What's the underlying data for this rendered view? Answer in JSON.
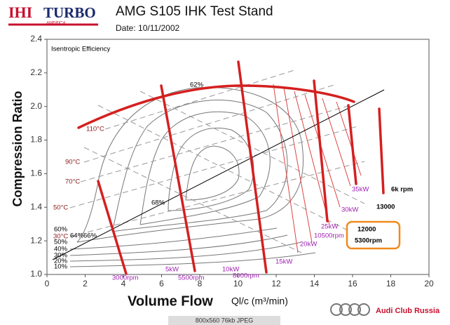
{
  "logo": {
    "brand": "IHI",
    "name": "TURBO",
    "region": "AMERICA"
  },
  "footer": {
    "image_info": "800x560  76kb  JPEG",
    "club": "Audi Club Russia"
  },
  "chart_data": {
    "type": "contour",
    "title": "AMG S105 IHK Test Stand",
    "subtitle": "Date: 10/11/2002",
    "xlabel": "Volume Flow",
    "xlabel_unit": "Ql/c (m³/min)",
    "ylabel": "Compression Ratio",
    "xlim": [
      0,
      20
    ],
    "ylim": [
      1.0,
      2.4
    ],
    "xticks": [
      0,
      2,
      4,
      6,
      8,
      10,
      12,
      14,
      16,
      18,
      20
    ],
    "yticks": [
      {
        "value": 1.0,
        "label": "1.0"
      },
      1.2,
      1.4,
      1.6,
      1.8,
      {
        "value": 2.0,
        "label": "2.0"
      },
      2.2,
      2.4
    ],
    "annotations": [
      "Isentropic Efficiency",
      "62%",
      "68%",
      "64%66%",
      "60%",
      "50%",
      "40%",
      "30%",
      "20%",
      "10%",
      "110°C",
      "90°C",
      "70°C",
      "50°C",
      "30°C",
      "3000rpm",
      "5500rpm",
      "8000rpm",
      "10500rpm",
      "5kW",
      "10kW",
      "15kW",
      "20kW",
      "25kW",
      "30kW",
      "35kW",
      "6k rpm",
      "13000",
      "12000",
      "5300rpm"
    ]
  }
}
